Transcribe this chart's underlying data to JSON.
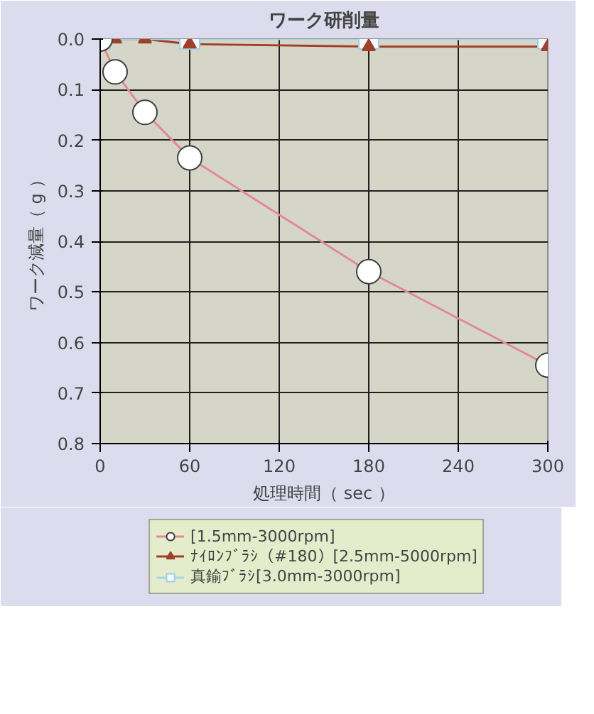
{
  "chart_data": {
    "type": "line",
    "title": "ワーク研削量",
    "xlabel": "処理時間（ sec ）",
    "ylabel": "ワーク減量（ g ）",
    "xlim": [
      0,
      300
    ],
    "xticks": [
      0,
      60,
      120,
      180,
      240,
      300
    ],
    "ylim": [
      0.8,
      0.0
    ],
    "yticks": [
      {
        "value": 0.0,
        "label": "0.0"
      },
      {
        "value": 0.1,
        "label": "0.1"
      },
      {
        "value": 0.2,
        "label": "0.2"
      },
      {
        "value": 0.3,
        "label": "0.3"
      },
      {
        "value": 0.4,
        "label": "0.4"
      },
      {
        "value": 0.5,
        "label": "0.5"
      },
      {
        "value": 0.6,
        "label": "0.6"
      },
      {
        "value": 0.7,
        "label": "0.7"
      },
      {
        "value": 0.8,
        "label": "0.8"
      }
    ],
    "grid": true,
    "legend": "bottom",
    "series": [
      {
        "name": "[1.5mm-3000rpm]",
        "color": "#e08a98",
        "marker": "circle",
        "x": [
          0,
          10,
          30,
          60,
          180,
          300
        ],
        "values": [
          0.0,
          0.065,
          0.145,
          0.235,
          0.46,
          0.645
        ]
      },
      {
        "name": "ﾅｲﾛﾝﾌﾞﾗｼ（#180）[2.5mm-5000rpm]",
        "color": "#a0402a",
        "marker": "triangle",
        "x": [
          10,
          30,
          60,
          180,
          300
        ],
        "values": [
          0.0,
          0.0,
          0.01,
          0.015,
          0.015
        ]
      },
      {
        "name": "真鍮ﾌﾞﾗｼ[3.0mm-3000rpm]",
        "color": "#a8d4ec",
        "marker": "square",
        "x": [
          0,
          60,
          180,
          300
        ],
        "values": [
          0.0,
          0.0,
          0.0,
          0.0
        ]
      }
    ]
  }
}
